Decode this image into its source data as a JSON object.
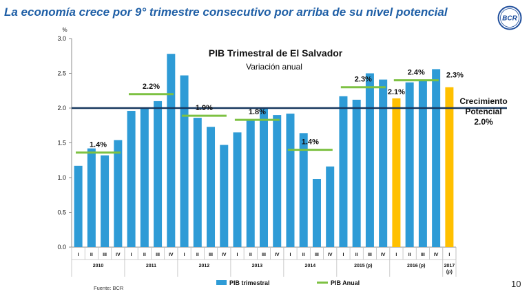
{
  "slide": {
    "title": "La economía crece por 9° trimestre consecutivo por arriba de su nivel potencial",
    "source": "Fuente: BCR",
    "page_number": "10",
    "logo_text": "BCR"
  },
  "colors": {
    "title": "#1f5fa6",
    "bar": "#2e9bd6",
    "bar_highlight": "#ffc000",
    "annual_line": "#7dc142",
    "potential_line": "#17375e",
    "logo": "#1f4e9c"
  },
  "chart_data": {
    "type": "bar",
    "title": "PIB Trimestral de El Salvador",
    "subtitle": "Variación anual",
    "ylabel": "%",
    "ylim": [
      0,
      3.0
    ],
    "yticks": [
      "0.0",
      "0.5",
      "1.0",
      "1.5",
      "2.0",
      "2.5",
      "3.0"
    ],
    "grid": false,
    "legend_position": "bottom",
    "categories": [
      "I",
      "II",
      "III",
      "IV",
      "I",
      "II",
      "III",
      "IV",
      "I",
      "II",
      "III",
      "IV",
      "I",
      "II",
      "III",
      "IV",
      "I",
      "II",
      "III",
      "IV",
      "I",
      "II",
      "III",
      "IV",
      "I",
      "II",
      "III",
      "IV",
      "I"
    ],
    "series": [
      {
        "name": "PIB trimestral",
        "values": [
          1.17,
          1.42,
          1.32,
          1.54,
          1.96,
          2.0,
          2.1,
          2.78,
          2.47,
          1.86,
          1.73,
          1.47,
          1.65,
          1.83,
          2.0,
          1.9,
          1.92,
          1.64,
          0.98,
          1.16,
          2.17,
          2.12,
          2.5,
          2.41,
          2.14,
          2.37,
          2.4,
          2.56,
          2.3
        ],
        "highlight_indices": [
          24,
          28
        ]
      }
    ],
    "annual": {
      "name": "PIB Anual",
      "values": [
        1.36,
        2.2,
        1.89,
        1.83,
        1.4,
        2.3,
        2.4
      ],
      "labels": [
        "1.4%",
        "2.2%",
        "1.9%",
        "1.8%",
        "1.4%",
        "2.3%",
        "2.4%"
      ]
    },
    "bar_labels": [
      {
        "index": 24,
        "label": "2.1%"
      },
      {
        "index": 28,
        "label": "2.3%"
      }
    ],
    "potential": {
      "value": 2.0,
      "label_lines": [
        "Crecimiento",
        "Potencial",
        "2.0%"
      ]
    },
    "year_groups": [
      {
        "label": "2010",
        "count": 4
      },
      {
        "label": "2011",
        "count": 4
      },
      {
        "label": "2012",
        "count": 4
      },
      {
        "label": "2013",
        "count": 4
      },
      {
        "label": "2014",
        "count": 4
      },
      {
        "label": "2015 (p)",
        "count": 4
      },
      {
        "label": "2016 (p)",
        "count": 4
      },
      {
        "label": "2017 (p)",
        "count": 1
      }
    ]
  }
}
